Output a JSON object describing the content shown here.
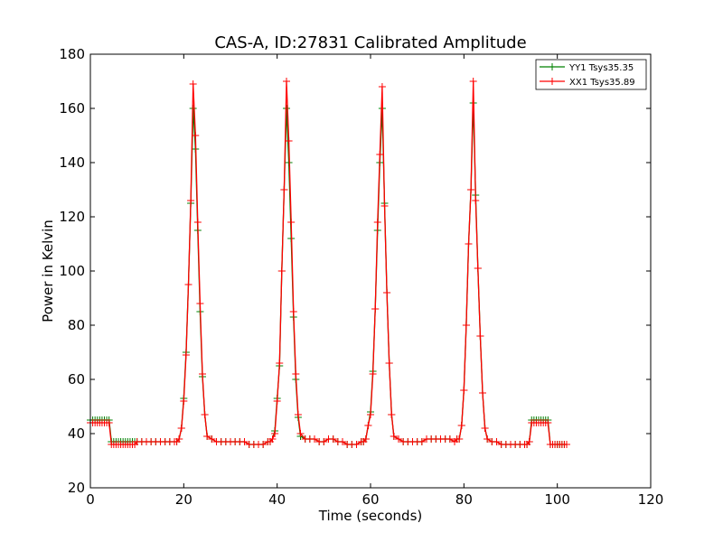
{
  "chart_data": {
    "type": "line",
    "title": "CAS-A, ID:27831 Calibrated Amplitude",
    "xlabel": "Time (seconds)",
    "ylabel": "Power in Kelvin",
    "xlim": [
      0,
      120
    ],
    "ylim": [
      20,
      180
    ],
    "xticks": [
      0,
      20,
      40,
      60,
      80,
      100,
      120
    ],
    "yticks": [
      20,
      40,
      60,
      80,
      100,
      120,
      140,
      160,
      180
    ],
    "grid": false,
    "legend_position": "top-right",
    "series": [
      {
        "name": "YY1 Tsys35.35",
        "color": "#008000",
        "marker": "+",
        "x": [
          0,
          0.5,
          1,
          1.5,
          2,
          2.5,
          3,
          3.5,
          4,
          4.5,
          5,
          5.5,
          6,
          6.5,
          7,
          7.5,
          8,
          8.5,
          9,
          9.5,
          10,
          11,
          12,
          13,
          14,
          15,
          16,
          17,
          18,
          18.5,
          19,
          19.5,
          20,
          20.5,
          21,
          21.5,
          22,
          22.5,
          23,
          23.5,
          24,
          24.5,
          25,
          26,
          27,
          28,
          29,
          30,
          31,
          32,
          33,
          34,
          35,
          36,
          37,
          38,
          38.5,
          39,
          39.5,
          40,
          40.5,
          41,
          41.5,
          42,
          42.5,
          43,
          43.5,
          44,
          44.5,
          45,
          46,
          47,
          48,
          49,
          50,
          51,
          52,
          53,
          54,
          55,
          56,
          57,
          58,
          58.5,
          59,
          59.5,
          60,
          60.5,
          61,
          61.5,
          62,
          62.5,
          63,
          63.5,
          64,
          64.5,
          65,
          66,
          67,
          68,
          69,
          70,
          71,
          72,
          73,
          74,
          75,
          76,
          77,
          78,
          78.5,
          79,
          79.5,
          80,
          80.5,
          81,
          81.5,
          82,
          82.5,
          83,
          83.5,
          84,
          84.5,
          85,
          86,
          87,
          88,
          89,
          90,
          91,
          92,
          93,
          93.5,
          94,
          94.5,
          95,
          95.5,
          96,
          96.5,
          97,
          97.5,
          98,
          98.5,
          99,
          99.5,
          100,
          100.5,
          101,
          101.5,
          102
        ],
        "y": [
          45,
          45,
          45,
          45,
          45,
          45,
          45,
          45,
          45,
          37,
          37,
          37,
          37,
          37,
          37,
          37,
          37,
          37,
          37,
          37,
          37,
          37,
          37,
          37,
          37,
          37,
          37,
          37,
          37,
          37,
          38,
          42,
          53,
          70,
          95,
          125,
          160,
          145,
          115,
          85,
          61,
          47,
          39,
          38,
          37,
          37,
          37,
          37,
          37,
          37,
          37,
          36,
          36,
          36,
          36,
          37,
          37,
          38,
          41,
          53,
          65,
          100,
          130,
          160,
          140,
          112,
          83,
          60,
          46,
          39,
          38,
          38,
          38,
          37,
          37,
          38,
          38,
          37,
          37,
          36,
          36,
          36,
          37,
          37,
          38,
          43,
          48,
          63,
          86,
          115,
          140,
          160,
          125,
          92,
          66,
          47,
          39,
          38,
          37,
          37,
          37,
          37,
          37,
          38,
          38,
          38,
          38,
          38,
          38,
          37,
          38,
          38,
          43,
          56,
          80,
          110,
          130,
          162,
          128,
          101,
          76,
          55,
          42,
          38,
          37,
          37,
          36,
          36,
          36,
          36,
          36,
          36,
          36,
          37,
          45,
          45,
          45,
          45,
          45,
          45,
          45,
          45,
          36,
          36,
          36,
          36,
          36,
          36,
          36,
          36
        ]
      },
      {
        "name": "XX1 Tsys35.89",
        "color": "#ff0000",
        "marker": "+",
        "x": [
          0,
          0.5,
          1,
          1.5,
          2,
          2.5,
          3,
          3.5,
          4,
          4.5,
          5,
          5.5,
          6,
          6.5,
          7,
          7.5,
          8,
          8.5,
          9,
          9.5,
          10,
          11,
          12,
          13,
          14,
          15,
          16,
          17,
          18,
          18.5,
          19,
          19.5,
          20,
          20.5,
          21,
          21.5,
          22,
          22.5,
          23,
          23.5,
          24,
          24.5,
          25,
          26,
          27,
          28,
          29,
          30,
          31,
          32,
          33,
          34,
          35,
          36,
          37,
          38,
          38.5,
          39,
          39.5,
          40,
          40.5,
          41,
          41.5,
          42,
          42.5,
          43,
          43.5,
          44,
          44.5,
          45,
          46,
          47,
          48,
          49,
          50,
          51,
          52,
          53,
          54,
          55,
          56,
          57,
          58,
          58.5,
          59,
          59.5,
          60,
          60.5,
          61,
          61.5,
          62,
          62.5,
          63,
          63.5,
          64,
          64.5,
          65,
          66,
          67,
          68,
          69,
          70,
          71,
          72,
          73,
          74,
          75,
          76,
          77,
          78,
          78.5,
          79,
          79.5,
          80,
          80.5,
          81,
          81.5,
          82,
          82.5,
          83,
          83.5,
          84,
          84.5,
          85,
          86,
          87,
          88,
          89,
          90,
          91,
          92,
          93,
          93.5,
          94,
          94.5,
          95,
          95.5,
          96,
          96.5,
          97,
          97.5,
          98,
          98.5,
          99,
          99.5,
          100,
          100.5,
          101,
          101.5,
          102
        ],
        "y": [
          44,
          44,
          44,
          44,
          44,
          44,
          44,
          44,
          44,
          36,
          36,
          36,
          36,
          36,
          36,
          36,
          36,
          36,
          36,
          36,
          37,
          37,
          37,
          37,
          37,
          37,
          37,
          37,
          37,
          37,
          38,
          42,
          52,
          69,
          95,
          126,
          169,
          150,
          118,
          88,
          62,
          47,
          39,
          38,
          37,
          37,
          37,
          37,
          37,
          37,
          37,
          36,
          36,
          36,
          36,
          37,
          37,
          38,
          40,
          52,
          66,
          100,
          130,
          170,
          148,
          118,
          85,
          62,
          47,
          40,
          38,
          38,
          38,
          37,
          37,
          38,
          38,
          37,
          37,
          36,
          36,
          36,
          37,
          37,
          38,
          43,
          47,
          62,
          86,
          118,
          143,
          168,
          124,
          92,
          66,
          47,
          39,
          38,
          37,
          37,
          37,
          37,
          37,
          38,
          38,
          38,
          38,
          38,
          38,
          37,
          38,
          38,
          43,
          56,
          80,
          110,
          130,
          170,
          126,
          101,
          76,
          55,
          42,
          38,
          37,
          37,
          36,
          36,
          36,
          36,
          36,
          36,
          36,
          37,
          44,
          44,
          44,
          44,
          44,
          44,
          44,
          44,
          36,
          36,
          36,
          36,
          36,
          36,
          36,
          36
        ]
      }
    ]
  }
}
